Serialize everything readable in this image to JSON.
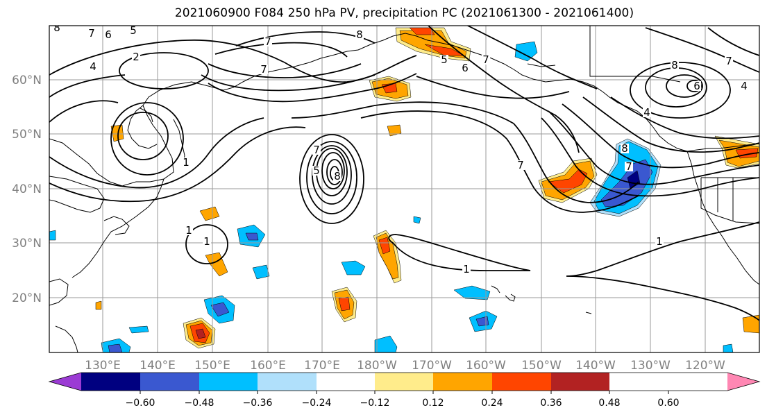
{
  "title": "2021060900 F084 250 hPa PV, precipitation PC (2021061300 - 2021061400)",
  "map": {
    "lat_labels": [
      "60°N",
      "50°N",
      "40°N",
      "30°N",
      "20°N"
    ],
    "lon_labels": [
      "130°E",
      "140°E",
      "150°E",
      "160°E",
      "170°E",
      "180°W",
      "170°W",
      "160°W",
      "150°W",
      "140°W",
      "130°W",
      "120°W"
    ],
    "contour_labels": [
      "8",
      "7",
      "6",
      "5",
      "4",
      "7",
      "2",
      "7",
      "1",
      "8",
      "5",
      "6",
      "7",
      "1",
      "7",
      "8",
      "7",
      "8",
      "7",
      "6",
      "4",
      "1",
      "1",
      "1",
      "8",
      "7",
      "5",
      "4"
    ]
  },
  "colorbar": {
    "tick_labels": [
      "−0.60",
      "−0.48",
      "−0.36",
      "−0.24",
      "−0.12",
      "0.12",
      "0.24",
      "0.36",
      "0.48",
      "0.60"
    ],
    "colors": [
      "#9b3bd4",
      "#000080",
      "#3a58d0",
      "#00bfff",
      "#b0e0fb",
      "#ffffff",
      "#ffec8b",
      "#ffa500",
      "#ff4500",
      "#b22222",
      "#ff87b3"
    ]
  },
  "style": {
    "frame_color": "#000000",
    "grid_color": "#9a9a9a",
    "label_color": "#7f7f7f"
  }
}
